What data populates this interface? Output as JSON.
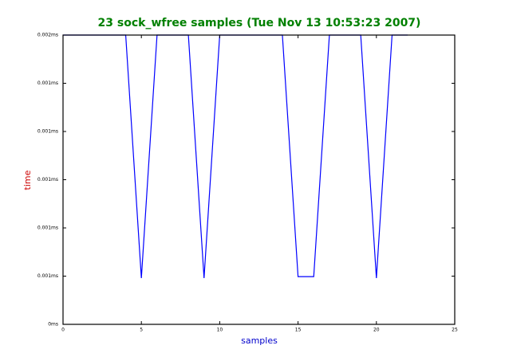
{
  "chart_data": {
    "type": "line",
    "title": "23 sock_wfree samples (Tue Nov 13 10:53:23 2007)",
    "x_label": "samples",
    "y_label": "time",
    "title_color": "#008000",
    "x_label_color": "#0000cc",
    "y_label_color": "#cc0000",
    "x": [
      0,
      1,
      2,
      3,
      4,
      5,
      6,
      7,
      8,
      9,
      10,
      11,
      12,
      13,
      14,
      15,
      16,
      17,
      18,
      19,
      20,
      21,
      22
    ],
    "series": [
      {
        "color": "#0000ff",
        "values": [
          0.00155,
          0.00155,
          0.00155,
          0.00155,
          0.00155,
          0.000542,
          0.00155,
          0.00155,
          0.00155,
          0.000542,
          0.00155,
          0.00155,
          0.00155,
          0.00155,
          0.00155,
          0.000548,
          0.000548,
          0.00155,
          0.00155,
          0.00155,
          0.000542,
          0.00155,
          0.00155
        ]
      }
    ],
    "xlim": [
      0,
      25
    ],
    "xticks": [
      0,
      5,
      10,
      15,
      20,
      25
    ],
    "ylim": [
      0.00035,
      0.00155
    ],
    "yticks": [
      {
        "value": 0.00035,
        "label": "0ms"
      },
      {
        "value": 0.00055,
        "label": "0.001ms"
      },
      {
        "value": 0.00075,
        "label": "0.001ms"
      },
      {
        "value": 0.00095,
        "label": "0.001ms"
      },
      {
        "value": 0.00115,
        "label": "0.001ms"
      },
      {
        "value": 0.00135,
        "label": "0.001ms"
      },
      {
        "value": 0.00155,
        "label": "0.002ms"
      }
    ]
  }
}
